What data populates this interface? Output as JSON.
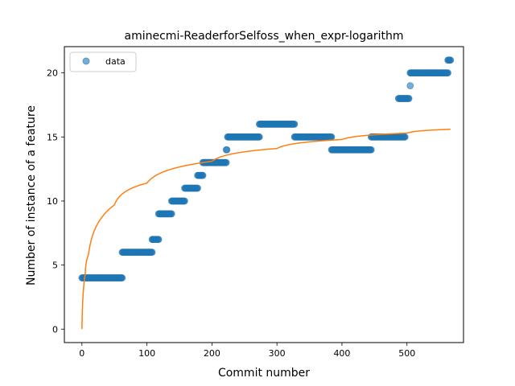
{
  "chart_data": {
    "type": "scatter",
    "title": "aminecmi-ReaderforSelfoss_when_expr-logarithm",
    "xlabel": "Commit number",
    "ylabel": "Number of instance of a feature",
    "xlim": [
      -27,
      587
    ],
    "ylim": [
      -1.05,
      22.05
    ],
    "xticks": [
      0,
      100,
      200,
      300,
      400,
      500
    ],
    "yticks": [
      0,
      5,
      10,
      15,
      20
    ],
    "grid": false,
    "legend": {
      "position": "top-left",
      "entries": [
        "data"
      ]
    },
    "colors": {
      "data": "#1f77b4",
      "fit": "#ff7f0e"
    },
    "series": [
      {
        "name": "data",
        "kind": "scatter",
        "segments": [
          {
            "x_start": 0,
            "x_end": 62,
            "y": 4
          },
          {
            "x_start": 62,
            "x_end": 108,
            "y": 6
          },
          {
            "x_start": 108,
            "x_end": 118,
            "y": 7
          },
          {
            "x_start": 118,
            "x_end": 138,
            "y": 9
          },
          {
            "x_start": 138,
            "x_end": 158,
            "y": 10
          },
          {
            "x_start": 158,
            "x_end": 178,
            "y": 11
          },
          {
            "x_start": 178,
            "x_end": 186,
            "y": 12
          },
          {
            "x_start": 186,
            "x_end": 222,
            "y": 13
          },
          {
            "x_start": 222,
            "x_end": 223,
            "y": 14
          },
          {
            "x_start": 224,
            "x_end": 273,
            "y": 15
          },
          {
            "x_start": 273,
            "x_end": 327,
            "y": 16
          },
          {
            "x_start": 327,
            "x_end": 384,
            "y": 15
          },
          {
            "x_start": 384,
            "x_end": 445,
            "y": 14
          },
          {
            "x_start": 445,
            "x_end": 497,
            "y": 15
          },
          {
            "x_start": 487,
            "x_end": 503,
            "y": 18
          },
          {
            "x_start": 505,
            "x_end": 505,
            "y": 19
          },
          {
            "x_start": 505,
            "x_end": 563,
            "y": 20
          },
          {
            "x_start": 563,
            "x_end": 567,
            "y": 21
          }
        ]
      },
      {
        "name": "",
        "kind": "line",
        "function": "logarithm",
        "x_range": [
          0,
          567
        ],
        "points": [
          [
            0,
            0
          ],
          [
            5,
            4.3
          ],
          [
            10,
            5.8
          ],
          [
            50,
            9.7
          ],
          [
            100,
            11.4
          ],
          [
            200,
            13.1
          ],
          [
            300,
            14.1
          ],
          [
            400,
            14.8
          ],
          [
            500,
            15.3
          ],
          [
            567,
            15.6
          ]
        ]
      }
    ]
  }
}
